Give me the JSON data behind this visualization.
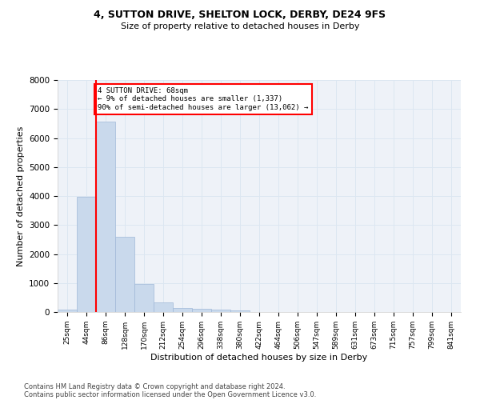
{
  "title1": "4, SUTTON DRIVE, SHELTON LOCK, DERBY, DE24 9FS",
  "title2": "Size of property relative to detached houses in Derby",
  "xlabel": "Distribution of detached houses by size in Derby",
  "ylabel": "Number of detached properties",
  "bar_color": "#c9d9ec",
  "bar_edge_color": "#a0b8d8",
  "grid_color": "#dce6f1",
  "background_color": "#eef2f8",
  "categories": [
    "25sqm",
    "44sqm",
    "86sqm",
    "128sqm",
    "170sqm",
    "212sqm",
    "254sqm",
    "296sqm",
    "338sqm",
    "380sqm",
    "422sqm",
    "464sqm",
    "506sqm",
    "547sqm",
    "589sqm",
    "631sqm",
    "673sqm",
    "715sqm",
    "757sqm",
    "799sqm",
    "841sqm"
  ],
  "values": [
    80,
    3980,
    6560,
    2600,
    960,
    320,
    140,
    120,
    70,
    60,
    0,
    0,
    0,
    0,
    0,
    0,
    0,
    0,
    0,
    0,
    0
  ],
  "ylim": [
    0,
    8000
  ],
  "yticks": [
    0,
    1000,
    2000,
    3000,
    4000,
    5000,
    6000,
    7000,
    8000
  ],
  "annotation_text": "4 SUTTON DRIVE: 68sqm\n← 9% of detached houses are smaller (1,337)\n90% of semi-detached houses are larger (13,062) →",
  "annotation_box_color": "white",
  "annotation_box_edge": "red",
  "red_line_color": "red",
  "footer1": "Contains HM Land Registry data © Crown copyright and database right 2024.",
  "footer2": "Contains public sector information licensed under the Open Government Licence v3.0."
}
